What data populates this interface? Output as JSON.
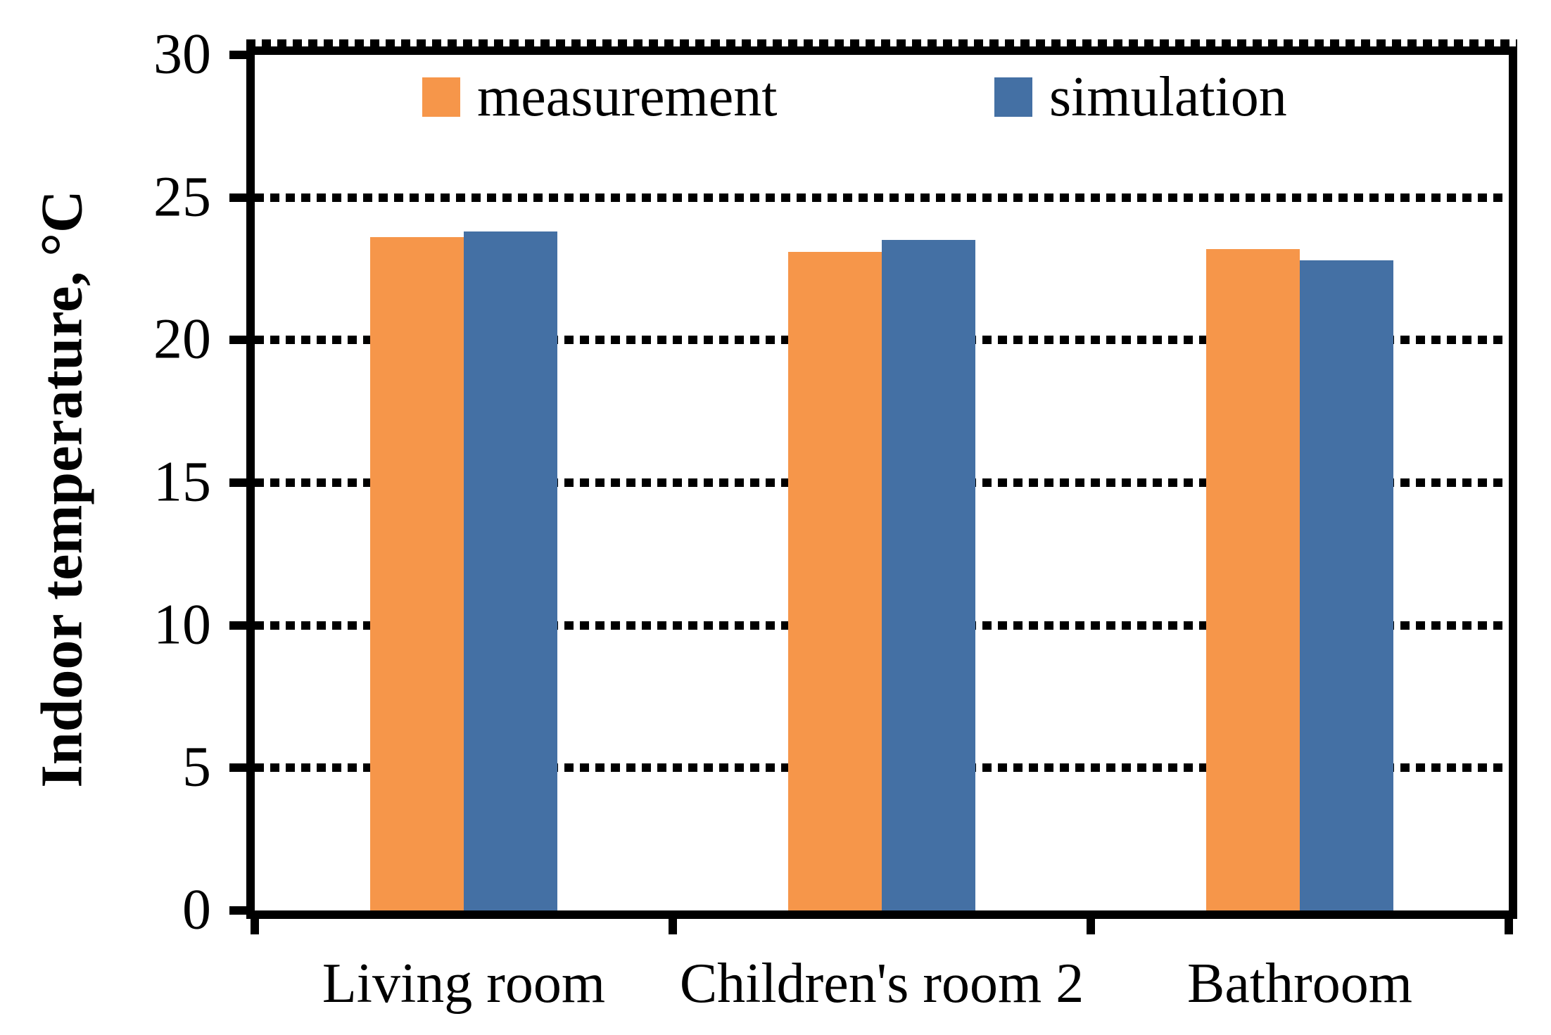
{
  "chart_data": {
    "type": "bar",
    "title": "",
    "xlabel": "",
    "ylabel": "Indoor temperature, °C",
    "categories": [
      "Living room",
      "Children's room 2",
      "Bathroom"
    ],
    "series": [
      {
        "name": "measurement",
        "color": "#F6964A",
        "values": [
          23.6,
          23.1,
          23.2
        ]
      },
      {
        "name": "simulation",
        "color": "#4470A4",
        "values": [
          23.8,
          23.5,
          22.8
        ]
      }
    ],
    "ylim": [
      0,
      30
    ],
    "yticks": [
      0,
      5,
      10,
      15,
      20,
      25,
      30
    ],
    "grid": "horizontal dashed gridlines at every y tick",
    "legend_position": "top-inside-horizontal",
    "frame": "solid black border around plot area",
    "colors": {
      "axis": "#000000",
      "background": "#ffffff"
    }
  }
}
